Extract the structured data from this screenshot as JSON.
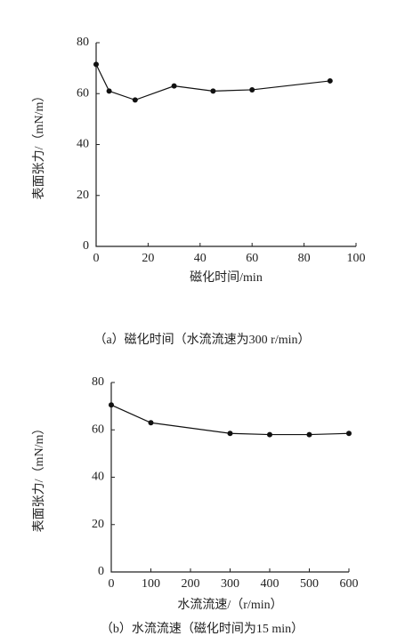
{
  "chart_data": [
    {
      "type": "line",
      "xlabel": "磁化时间/min",
      "ylabel": "表面张力/（mN/m）",
      "caption": "（a）磁化时间（水流流速为300 r/min）",
      "x": [
        0,
        5,
        15,
        30,
        45,
        60,
        90
      ],
      "series": [
        {
          "color": "#111111",
          "values": [
            71.5,
            61,
            57.5,
            63,
            61,
            61.5,
            65
          ]
        }
      ],
      "xlim": [
        0,
        100
      ],
      "xticks": [
        0,
        20,
        40,
        60,
        80,
        100
      ],
      "ylim": [
        0,
        80
      ],
      "yticks": [
        0,
        20,
        40,
        60,
        80
      ]
    },
    {
      "type": "line",
      "xlabel": "水流流速/（r/min）",
      "ylabel": "表面张力/（mN/m）",
      "caption": "（b）水流流速（磁化时间为15 min）",
      "x": [
        0,
        100,
        300,
        400,
        500,
        600
      ],
      "series": [
        {
          "color": "#111111",
          "values": [
            70.5,
            63,
            58.5,
            58,
            58,
            58.5
          ]
        }
      ],
      "xlim": [
        0,
        600
      ],
      "xticks": [
        0,
        100,
        200,
        300,
        400,
        500,
        600
      ],
      "ylim": [
        0,
        80
      ],
      "yticks": [
        0,
        20,
        40,
        60,
        80
      ]
    }
  ]
}
